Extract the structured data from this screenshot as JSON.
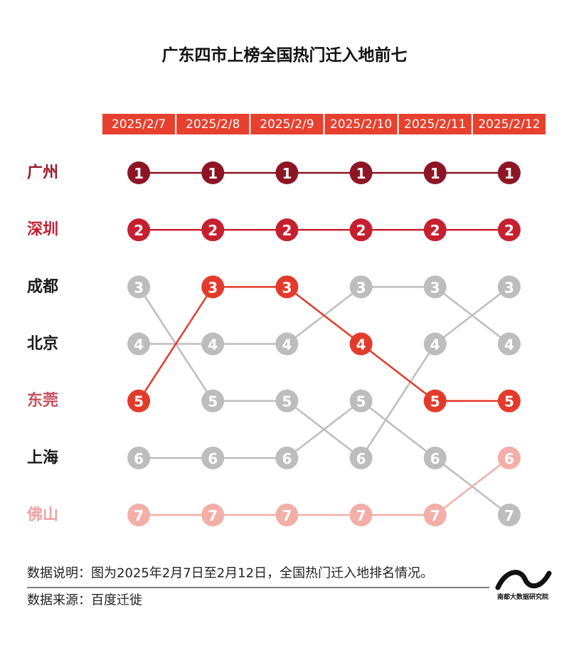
{
  "chart_data": {
    "type": "bump",
    "title": "广东四市上榜全国热门迁入地前七",
    "categories": [
      "2025/2/7",
      "2025/2/8",
      "2025/2/9",
      "2025/2/10",
      "2025/2/11",
      "2025/2/12"
    ],
    "ylim": [
      1,
      7
    ],
    "header_color": "#e8402e",
    "series": [
      {
        "name": "广州",
        "color": "#8e1526",
        "label_color": "#9b1b2a",
        "values": [
          1,
          1,
          1,
          1,
          1,
          1
        ]
      },
      {
        "name": "深圳",
        "color": "#c61f30",
        "label_color": "#c61f30",
        "values": [
          2,
          2,
          2,
          2,
          2,
          2
        ]
      },
      {
        "name": "成都",
        "color": "#bdbdbd",
        "label_color": "#1a1a1a",
        "values": [
          3,
          5,
          5,
          6,
          4,
          3
        ]
      },
      {
        "name": "北京",
        "color": "#bdbdbd",
        "label_color": "#1a1a1a",
        "values": [
          4,
          4,
          4,
          3,
          3,
          4
        ]
      },
      {
        "name": "东莞",
        "color": "#e33b2b",
        "label_color": "#c4505a",
        "values": [
          5,
          3,
          3,
          4,
          5,
          5
        ]
      },
      {
        "name": "上海",
        "color": "#bdbdbd",
        "label_color": "#1a1a1a",
        "values": [
          6,
          6,
          6,
          5,
          6,
          7
        ]
      },
      {
        "name": "佛山",
        "color": "#f3aea8",
        "label_color": "#f0a2a0",
        "values": [
          7,
          7,
          7,
          7,
          7,
          6
        ]
      }
    ],
    "notes": [
      "数据说明：图为2025年2月7日至2月12日，全国热门迁入地排名情况。",
      "数据来源：百度迁徙"
    ],
    "logo": "南都大数据研究院"
  }
}
